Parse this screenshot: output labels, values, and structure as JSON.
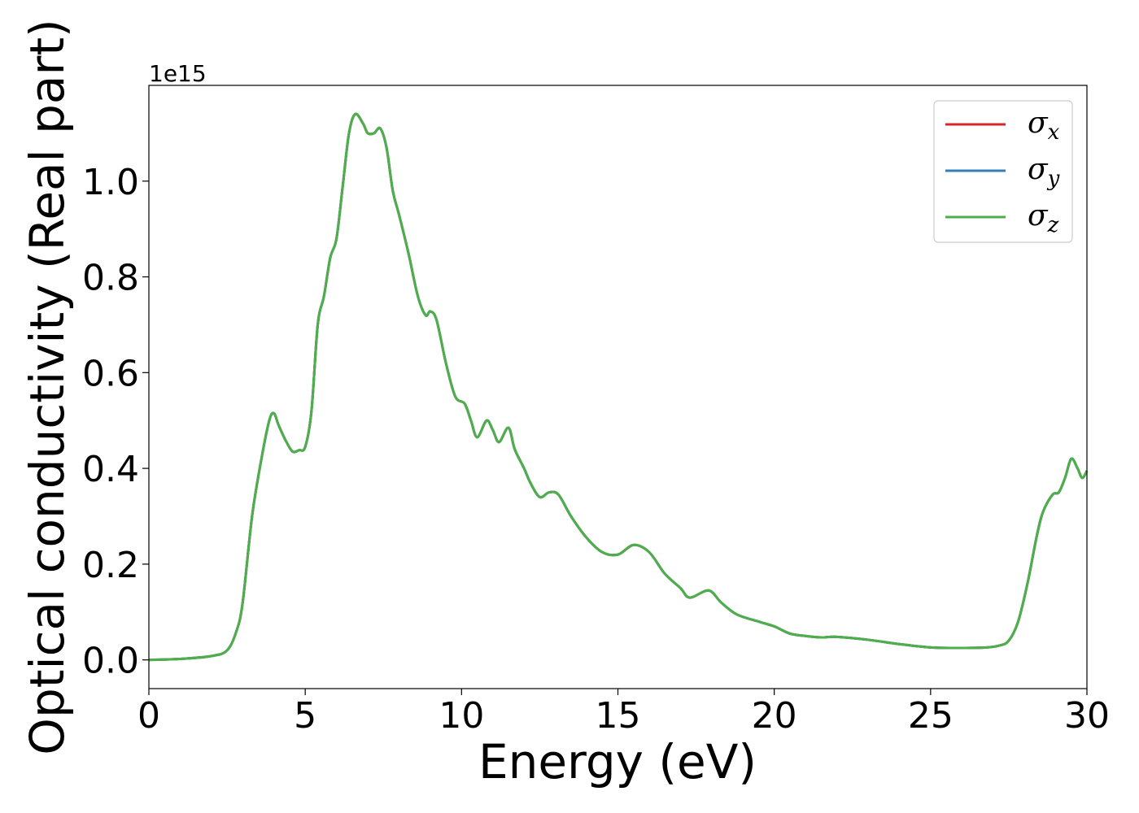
{
  "chart_data": {
    "type": "line",
    "title": "",
    "xlabel": "Energy (eV)",
    "ylabel": "Optical conductivity (Real part)",
    "y_offset_text": "1e15",
    "y_multiplier": 1000000000000000.0,
    "xlim": [
      0,
      30
    ],
    "ylim": [
      -0.06,
      1.2
    ],
    "x_ticks": [
      0,
      5,
      10,
      15,
      20,
      25,
      30
    ],
    "x_tick_labels": [
      "0",
      "5",
      "10",
      "15",
      "20",
      "25",
      "30"
    ],
    "y_ticks": [
      0.0,
      0.2,
      0.4,
      0.6,
      0.8,
      1.0
    ],
    "y_tick_labels": [
      "0.0",
      "0.2",
      "0.4",
      "0.6",
      "0.8",
      "1.0"
    ],
    "grid": false,
    "legend_position": "top-right",
    "series": [
      {
        "name": "σ",
        "subscript": "x",
        "color": "#d62728"
      },
      {
        "name": "σ",
        "subscript": "y",
        "color": "#377eb8"
      },
      {
        "name": "σ",
        "subscript": "z",
        "color": "#4daf4a"
      }
    ],
    "x": [
      0,
      1,
      2,
      2.5,
      2.8,
      3.0,
      3.3,
      3.6,
      3.85,
      4.0,
      4.15,
      4.4,
      4.6,
      4.8,
      5.0,
      5.2,
      5.4,
      5.6,
      5.8,
      6.0,
      6.2,
      6.4,
      6.6,
      6.85,
      7.0,
      7.2,
      7.4,
      7.6,
      7.8,
      8.0,
      8.3,
      8.6,
      8.85,
      9.0,
      9.2,
      9.5,
      9.8,
      10.1,
      10.3,
      10.5,
      10.8,
      11.0,
      11.2,
      11.5,
      11.7,
      12.0,
      12.2,
      12.5,
      12.8,
      13.1,
      13.5,
      14.0,
      14.5,
      15.0,
      15.5,
      16.0,
      16.5,
      17.0,
      17.3,
      17.9,
      18.3,
      18.8,
      19.5,
      20.0,
      20.5,
      21.0,
      21.5,
      22.0,
      23.0,
      24.0,
      25.0,
      26.0,
      26.8,
      27.2,
      27.5,
      27.8,
      28.1,
      28.4,
      28.6,
      28.9,
      29.1,
      29.3,
      29.5,
      29.7,
      29.85,
      30.0
    ],
    "values": [
      0.0,
      0.002,
      0.008,
      0.02,
      0.06,
      0.12,
      0.3,
      0.42,
      0.5,
      0.515,
      0.49,
      0.455,
      0.435,
      0.438,
      0.445,
      0.52,
      0.7,
      0.76,
      0.84,
      0.88,
      0.99,
      1.1,
      1.14,
      1.12,
      1.1,
      1.1,
      1.11,
      1.07,
      0.98,
      0.93,
      0.85,
      0.76,
      0.72,
      0.728,
      0.71,
      0.62,
      0.55,
      0.535,
      0.5,
      0.465,
      0.5,
      0.48,
      0.455,
      0.485,
      0.44,
      0.4,
      0.37,
      0.34,
      0.35,
      0.345,
      0.3,
      0.255,
      0.225,
      0.22,
      0.24,
      0.225,
      0.18,
      0.15,
      0.13,
      0.145,
      0.12,
      0.095,
      0.08,
      0.07,
      0.055,
      0.05,
      0.047,
      0.048,
      0.042,
      0.033,
      0.026,
      0.025,
      0.026,
      0.03,
      0.04,
      0.08,
      0.16,
      0.26,
      0.31,
      0.345,
      0.35,
      0.38,
      0.42,
      0.4,
      0.38,
      0.395
    ]
  }
}
